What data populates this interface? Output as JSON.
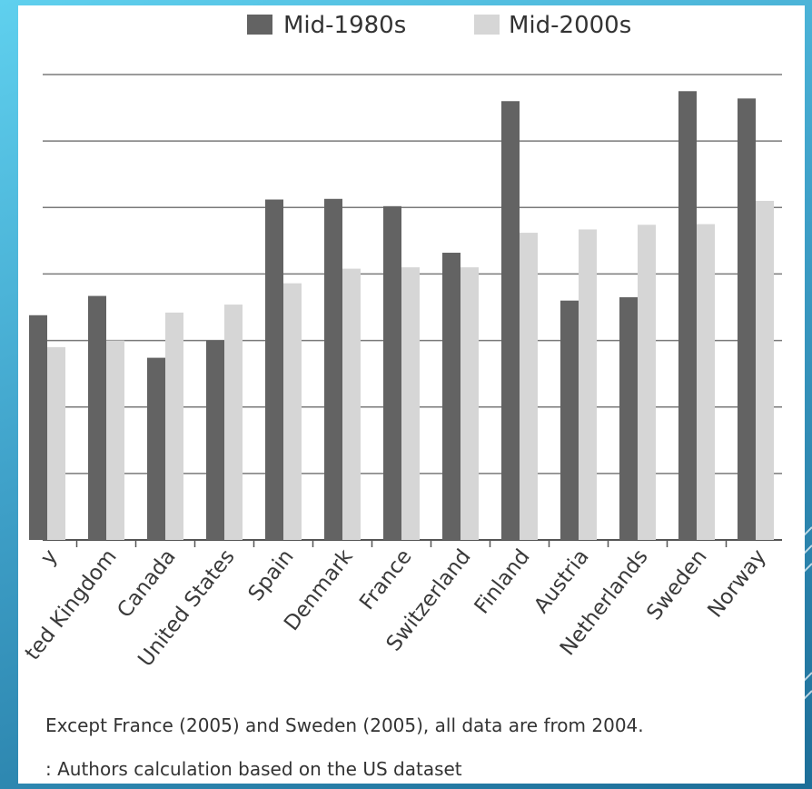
{
  "chart_data": {
    "type": "bar",
    "title": "",
    "xlabel": "",
    "ylabel": "",
    "ylim": [
      0,
      7
    ],
    "grid": true,
    "legend_position": "top",
    "categories": [
      "y",
      "ted Kingdom",
      "Canada",
      "United States",
      "Spain",
      "Denmark",
      "France",
      "Switzerland",
      "Finland",
      "Austria",
      "Netherlands",
      "Sweden",
      "Norway"
    ],
    "series": [
      {
        "name": "Mid-1980s",
        "color": "#636363",
        "values": [
          3.38,
          3.67,
          2.74,
          3.0,
          5.12,
          5.13,
          5.02,
          4.32,
          6.6,
          3.6,
          3.65,
          6.75,
          6.64
        ]
      },
      {
        "name": "Mid-2000s",
        "color": "#d6d6d6",
        "values": [
          2.9,
          3.0,
          3.42,
          3.54,
          3.86,
          4.08,
          4.1,
          4.1,
          4.62,
          4.67,
          4.74,
          4.75,
          5.1
        ]
      }
    ]
  },
  "footnote": "Except France (2005) and Sweden (2005), all data are from 2004.",
  "source_note": ": Authors calculation based on the US dataset"
}
